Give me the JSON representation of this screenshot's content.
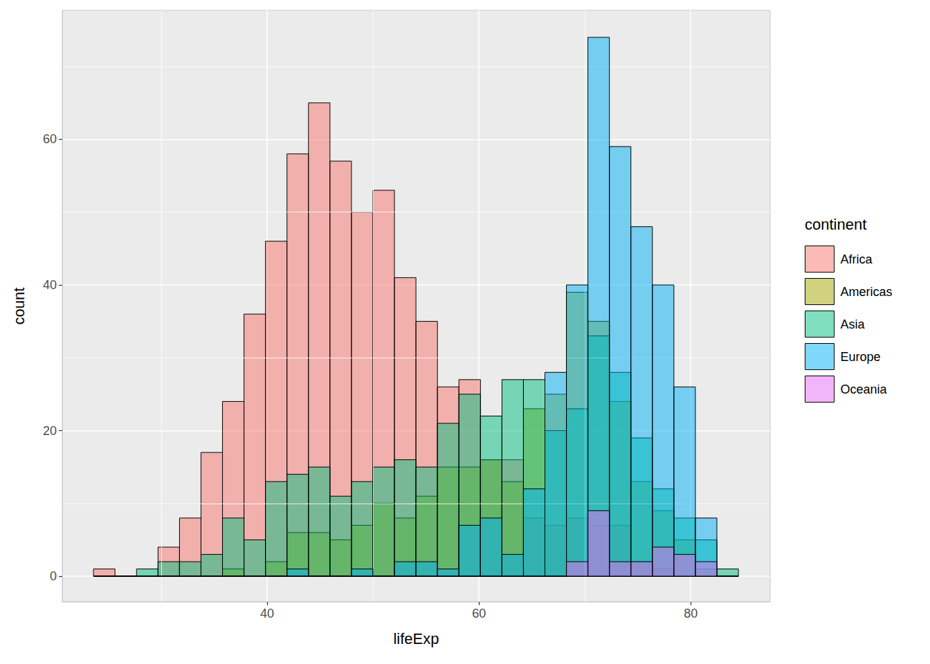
{
  "chart_data": {
    "type": "histogram",
    "x_label": "lifeExp",
    "y_label": "count",
    "legend_title": "continent",
    "legend": "right",
    "grid": true,
    "xlim": [
      20.65,
      87.5
    ],
    "xticks": [
      40,
      60,
      80
    ],
    "ylim": [
      -3.5,
      77.7
    ],
    "yticks": [
      0,
      20,
      40,
      60
    ],
    "bins": [
      23.6,
      25.63,
      27.66,
      29.69,
      31.72,
      33.75,
      35.78,
      37.81,
      39.84,
      41.87,
      43.9,
      45.93,
      47.96,
      49.99,
      52.02,
      54.05,
      56.08,
      58.11,
      60.14,
      62.17,
      64.2,
      66.23,
      68.26,
      70.29,
      72.32,
      74.35,
      76.38,
      78.41,
      80.44,
      82.47,
      84.5
    ],
    "series": [
      {
        "name": "Africa",
        "color": "#F8766D",
        "values": [
          1,
          0,
          0,
          4,
          8,
          17,
          24,
          36,
          46,
          58,
          65,
          57,
          50,
          53,
          41,
          35,
          26,
          27,
          16,
          16,
          8,
          7,
          8,
          7,
          7,
          2,
          1,
          0,
          0,
          0
        ]
      },
      {
        "name": "Americas",
        "color": "#A3A500",
        "values": [
          0,
          0,
          0,
          0,
          0,
          0,
          1,
          0,
          2,
          6,
          6,
          5,
          7,
          10,
          8,
          11,
          15,
          15,
          16,
          13,
          23,
          25,
          39,
          35,
          24,
          13,
          9,
          5,
          1,
          0
        ]
      },
      {
        "name": "Asia",
        "color": "#00BF7D",
        "values": [
          0,
          0,
          1,
          2,
          2,
          3,
          8,
          5,
          13,
          14,
          15,
          11,
          13,
          15,
          16,
          15,
          21,
          25,
          22,
          27,
          27,
          20,
          23,
          33,
          28,
          19,
          12,
          8,
          5,
          1
        ]
      },
      {
        "name": "Europe",
        "color": "#00B0F6",
        "values": [
          0,
          0,
          0,
          0,
          0,
          0,
          0,
          0,
          0,
          1,
          0,
          0,
          1,
          0,
          2,
          2,
          1,
          7,
          8,
          3,
          12,
          28,
          40,
          74,
          59,
          48,
          40,
          26,
          8,
          0
        ]
      },
      {
        "name": "Oceania",
        "color": "#E76BF3",
        "values": [
          0,
          0,
          0,
          0,
          0,
          0,
          0,
          0,
          0,
          0,
          0,
          0,
          0,
          0,
          0,
          0,
          0,
          0,
          0,
          0,
          0,
          0,
          2,
          9,
          2,
          2,
          4,
          3,
          2,
          0
        ]
      }
    ]
  }
}
